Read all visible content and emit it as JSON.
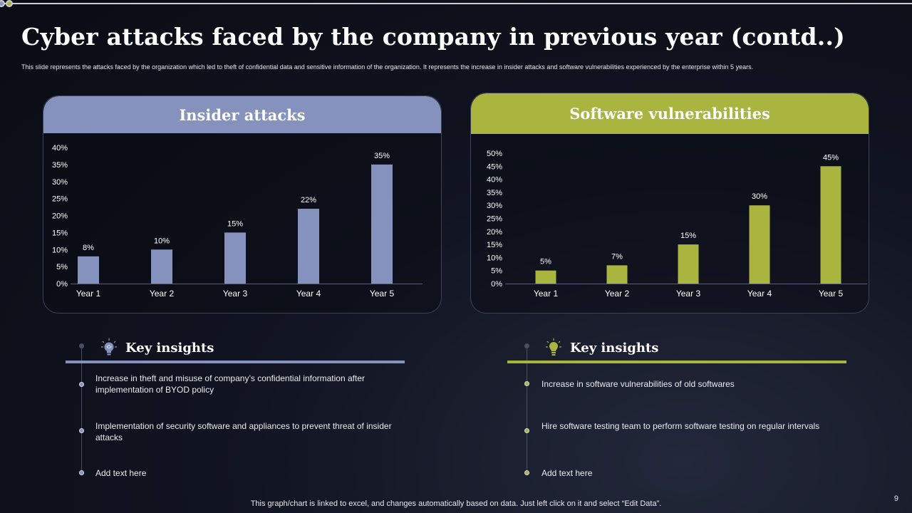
{
  "slide": {
    "title": "Cyber attacks faced by the company in previous year (contd..)",
    "subtitle": "This slide represents the attacks faced by the organization which led to theft of confidential data and sensitive information of the organization. It represents the increase in insider attacks and software vulnerabilities experienced by the enterprise within 5 years.",
    "footer": "This graph/chart is linked to excel, and changes automatically based on data. Just left click on it and select “Edit Data”.",
    "page_number": "9"
  },
  "panels": {
    "left": {
      "heading": "Insider attacks",
      "color": "#8592bd"
    },
    "right": {
      "heading": "Software  vulnerabilities",
      "color": "#a9b53e"
    }
  },
  "chart_data": [
    {
      "type": "bar",
      "title": "Insider attacks",
      "categories": [
        "Year 1",
        "Year 2",
        "Year 3",
        "Year 4",
        "Year 5"
      ],
      "values": [
        8,
        10,
        15,
        22,
        35
      ],
      "data_labels": [
        "8%",
        "10%",
        "15%",
        "22%",
        "35%"
      ],
      "y_ticks": [
        "0%",
        "5%",
        "10%",
        "15%",
        "20%",
        "25%",
        "30%",
        "35%",
        "40%"
      ],
      "ylim": [
        0,
        40
      ],
      "grid": false,
      "color": "#8592bd"
    },
    {
      "type": "bar",
      "title": "Software  vulnerabilities",
      "categories": [
        "Year 1",
        "Year 2",
        "Year 3",
        "Year 4",
        "Year 5"
      ],
      "values": [
        5,
        7,
        15,
        30,
        45
      ],
      "data_labels": [
        "5%",
        "7%",
        "15%",
        "30%",
        "45%"
      ],
      "y_ticks": [
        "0%",
        "5%",
        "10%",
        "15%",
        "20%",
        "25%",
        "30%",
        "35%",
        "40%",
        "45%",
        "50%"
      ],
      "ylim": [
        0,
        50
      ],
      "grid": false,
      "color": "#a9b53e"
    }
  ],
  "insights": {
    "left": {
      "title": "Key insights",
      "icon": "brain-bulb-icon",
      "items": [
        "Increase in theft and misuse of company’s confidential information after implementation of BYOD policy",
        "Implementation of security software and appliances to prevent threat of insider attacks",
        "Add text here"
      ]
    },
    "right": {
      "title": "Key insights",
      "icon": "lightbulb-icon",
      "items": [
        "Increase in software vulnerabilities  of old softwares",
        "Hire software testing team to perform  software testing on regular intervals",
        "Add text here"
      ]
    }
  }
}
